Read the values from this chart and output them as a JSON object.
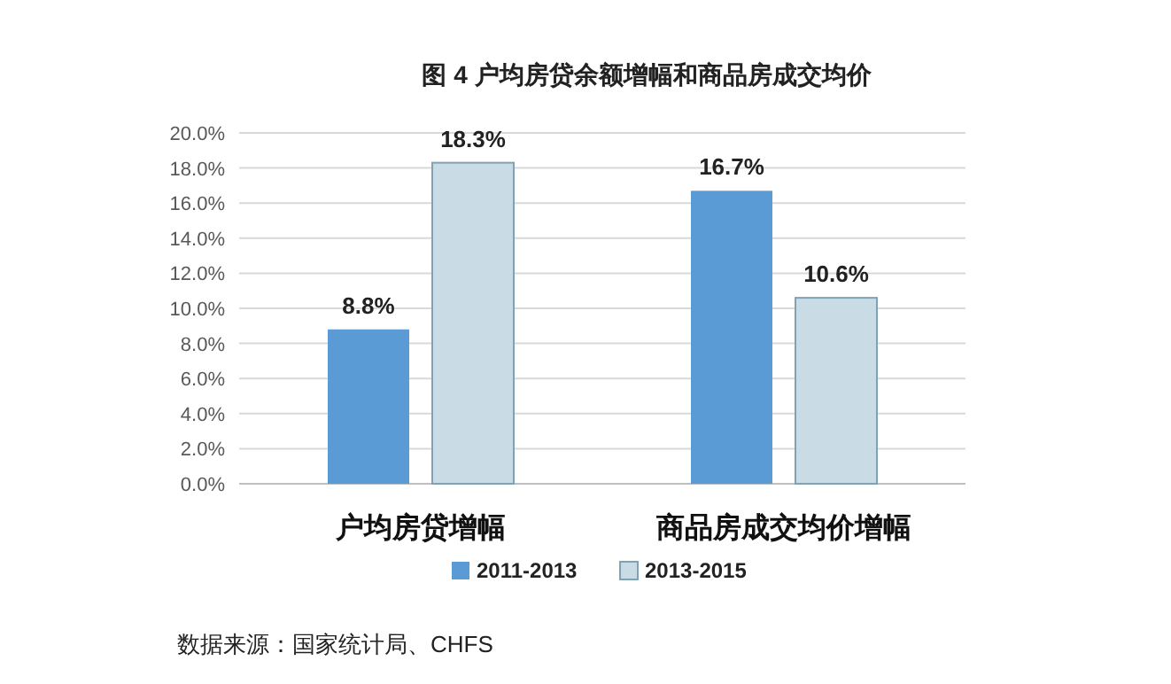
{
  "chart_data": {
    "type": "bar",
    "title": "图 4 户均房贷余额增幅和商品房成交均价",
    "categories": [
      "户均房贷增幅",
      "商品房成交均价增幅"
    ],
    "series": [
      {
        "name": "2011-2013",
        "color": "#5b9bd5",
        "values": [
          8.8,
          16.7
        ],
        "value_labels": [
          "8.8%",
          "16.7%"
        ]
      },
      {
        "name": "2013-2015",
        "color": "#c9dce6",
        "values": [
          18.3,
          10.6
        ],
        "value_labels": [
          "18.3%",
          "10.6%"
        ]
      }
    ],
    "ylim": [
      0,
      20
    ],
    "yticks": [
      {
        "value": 0,
        "label": "0.0%"
      },
      {
        "value": 2,
        "label": "2.0%"
      },
      {
        "value": 4,
        "label": "4.0%"
      },
      {
        "value": 6,
        "label": "6.0%"
      },
      {
        "value": 8,
        "label": "8.0%"
      },
      {
        "value": 10,
        "label": "10.0%"
      },
      {
        "value": 12,
        "label": "12.0%"
      },
      {
        "value": 14,
        "label": "14.0%"
      },
      {
        "value": 16,
        "label": "16.0%"
      },
      {
        "value": 18,
        "label": "18.0%"
      },
      {
        "value": 20,
        "label": "20.0%"
      }
    ],
    "grid": "y",
    "legend": "bottom",
    "annotations": [
      "数据来源：国家统计局、CHFS"
    ]
  }
}
